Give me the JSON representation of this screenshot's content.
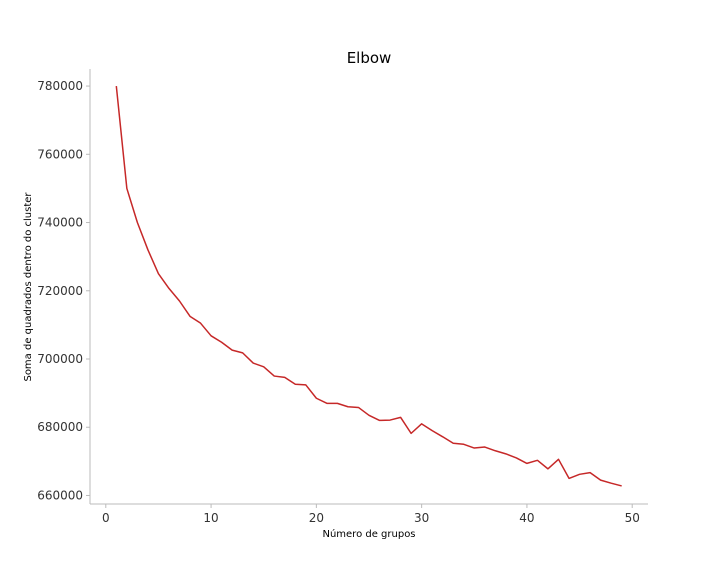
{
  "chart_data": {
    "type": "line",
    "title": "Elbow",
    "xlabel": "Número de grupos",
    "ylabel": "Soma de quadrados dentro do cluster",
    "xlim": [
      -1.5,
      51.5
    ],
    "ylim": [
      657500,
      785000
    ],
    "xticks": [
      0,
      10,
      20,
      30,
      40,
      50
    ],
    "yticks": [
      660000,
      680000,
      700000,
      720000,
      740000,
      760000,
      780000
    ],
    "xtick_labels": [
      "0",
      "10",
      "20",
      "30",
      "40",
      "50"
    ],
    "ytick_labels": [
      "660000",
      "680000",
      "700000",
      "720000",
      "740000",
      "760000",
      "780000"
    ],
    "grid": false,
    "line_color": "#c62828",
    "x": [
      1,
      2,
      3,
      4,
      5,
      6,
      7,
      8,
      9,
      10,
      11,
      12,
      13,
      14,
      15,
      16,
      17,
      18,
      19,
      20,
      21,
      22,
      23,
      24,
      25,
      26,
      27,
      28,
      29,
      30,
      31,
      32,
      33,
      34,
      35,
      36,
      37,
      38,
      39,
      40,
      41,
      42,
      43,
      44,
      45,
      46,
      47,
      48,
      49
    ],
    "y": [
      780000,
      750000,
      740000,
      732000,
      725000,
      720700,
      717000,
      712500,
      710500,
      706800,
      704900,
      702600,
      701800,
      698800,
      697700,
      695000,
      694600,
      692600,
      692400,
      688500,
      687000,
      687000,
      686000,
      685800,
      683500,
      682000,
      682100,
      682900,
      678200,
      681000,
      679000,
      677200,
      675300,
      675000,
      673900,
      674200,
      673100,
      672200,
      671000,
      669400,
      670300,
      667800,
      670600,
      665000,
      666200,
      666700,
      664500,
      663600,
      662800
    ]
  }
}
